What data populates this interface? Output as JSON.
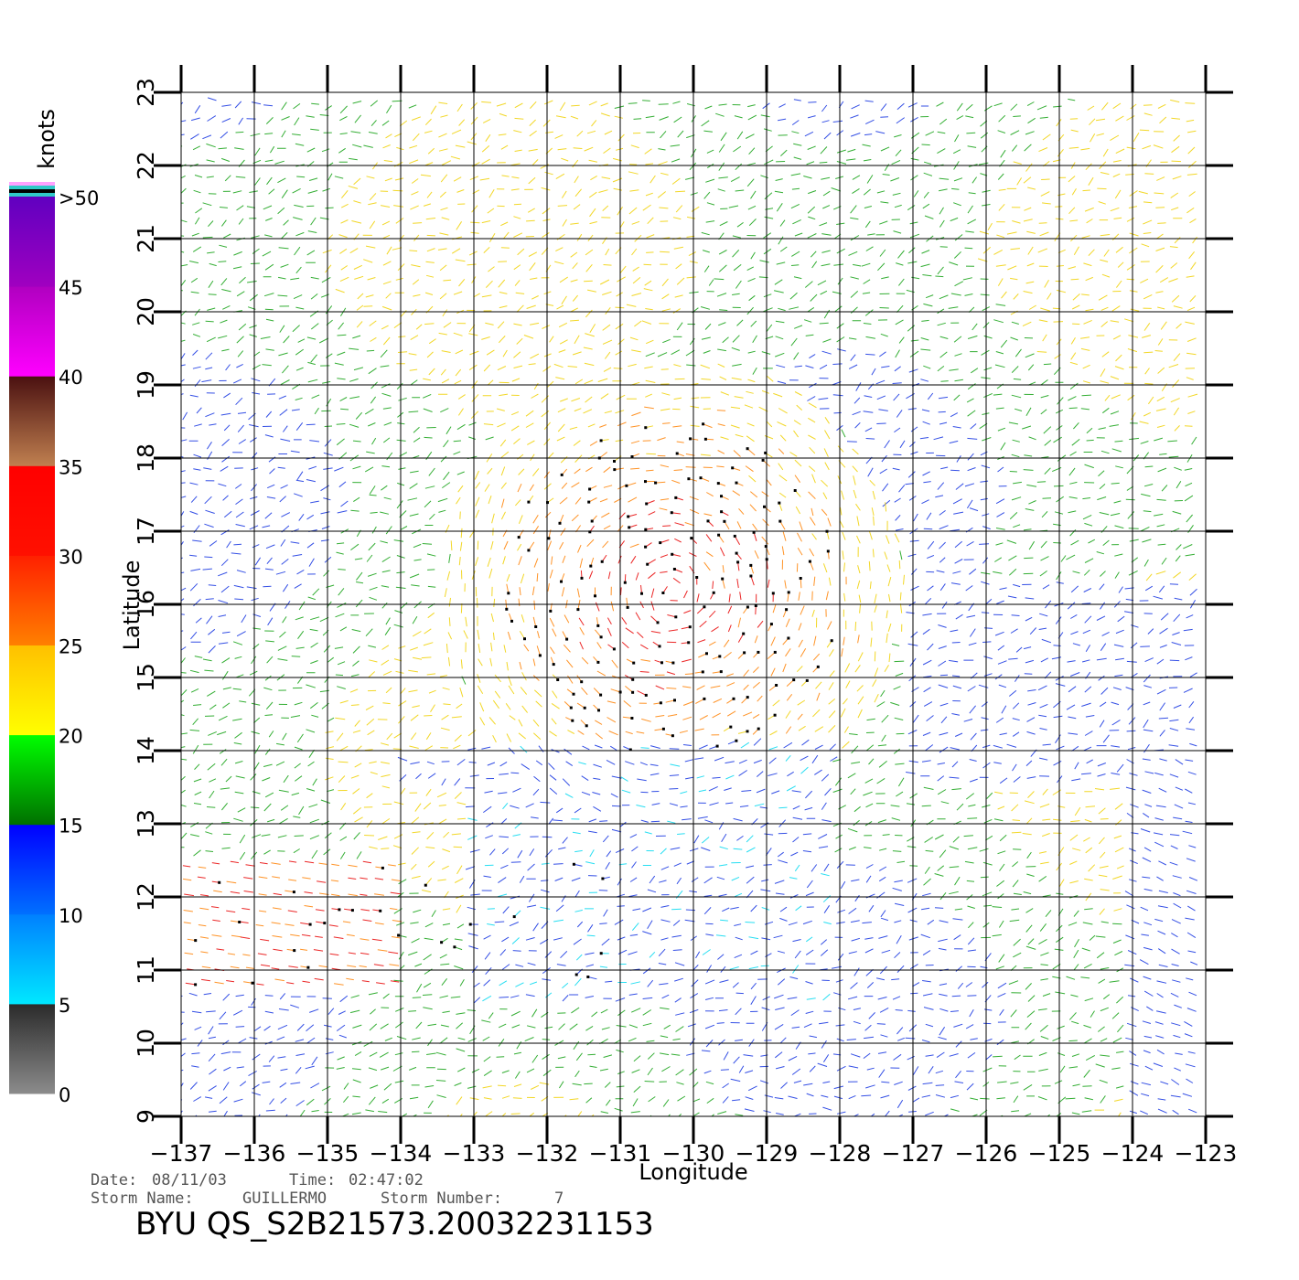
{
  "chart_data": {
    "type": "scatter",
    "subtype": "wind-vector-field",
    "xlabel": "Longitude",
    "ylabel": "Latitude",
    "xlim": [
      -137,
      -123
    ],
    "ylim": [
      9,
      23
    ],
    "x_ticks": [
      -137,
      -136,
      -135,
      -134,
      -133,
      -132,
      -131,
      -130,
      -129,
      -128,
      -127,
      -126,
      -125,
      -124,
      -123
    ],
    "y_ticks": [
      9,
      10,
      11,
      12,
      13,
      14,
      15,
      16,
      17,
      18,
      19,
      20,
      21,
      22,
      23
    ],
    "x_tick_labels": [
      "−137",
      "−136",
      "−135",
      "−134",
      "−133",
      "−132",
      "−131",
      "−130",
      "−129",
      "−128",
      "−127",
      "−126",
      "−125",
      "−124",
      "−123"
    ],
    "y_tick_labels": [
      "9",
      "10",
      "11",
      "12",
      "13",
      "14",
      "15",
      "16",
      "17",
      "18",
      "19",
      "20",
      "21",
      "22",
      "23"
    ],
    "grid": true,
    "colorbar": {
      "title": "knots",
      "tick_labels": [
        "0",
        "5",
        "10",
        "15",
        "20",
        "25",
        "30",
        "35",
        "40",
        "45",
        ">50"
      ],
      "bands": [
        {
          "from": 0,
          "to": 5,
          "colors": [
            "#8c8c8c",
            "#2a2a2a"
          ]
        },
        {
          "from": 5,
          "to": 10,
          "colors": [
            "#00e8ff",
            "#0080ff"
          ]
        },
        {
          "from": 10,
          "to": 15,
          "colors": [
            "#0070ff",
            "#0000ff"
          ]
        },
        {
          "from": 15,
          "to": 20,
          "colors": [
            "#007000",
            "#00ff00"
          ]
        },
        {
          "from": 20,
          "to": 25,
          "colors": [
            "#ffff00",
            "#ffc000"
          ]
        },
        {
          "from": 25,
          "to": 30,
          "colors": [
            "#ff8000",
            "#ff2000"
          ]
        },
        {
          "from": 30,
          "to": 35,
          "colors": [
            "#ff1000",
            "#ff0000"
          ]
        },
        {
          "from": 35,
          "to": 40,
          "colors": [
            "#c08050",
            "#4a1010"
          ]
        },
        {
          "from": 40,
          "to": 45,
          "colors": [
            "#ff00ff",
            "#b000c0"
          ]
        },
        {
          "from": 45,
          "to": 50,
          "colors": [
            "#a000c0",
            "#6000c0"
          ]
        }
      ],
      "top_stripes": [
        "#ffa0ff",
        "#30c8c8",
        "#000000",
        "#30c8c8"
      ]
    },
    "speed_colors": [
      "#333333",
      "#00d8f0",
      "#1030e0",
      "#10a010",
      "#f0d000",
      "#ff8000",
      "#e80000"
    ],
    "storm_center": {
      "lon": -130.3,
      "lat": 16.2
    },
    "rain_flag_color": "#000000"
  },
  "footer": {
    "date_label": "Date:",
    "date_value": "08/11/03",
    "time_label": "Time:",
    "time_value": "02:47:02",
    "storm_name_label": "Storm Name:",
    "storm_name_value": "GUILLERMO",
    "storm_number_label": "Storm Number:",
    "storm_number_value": "7",
    "product_id": "BYU QS_S2B21573.20032231153"
  }
}
